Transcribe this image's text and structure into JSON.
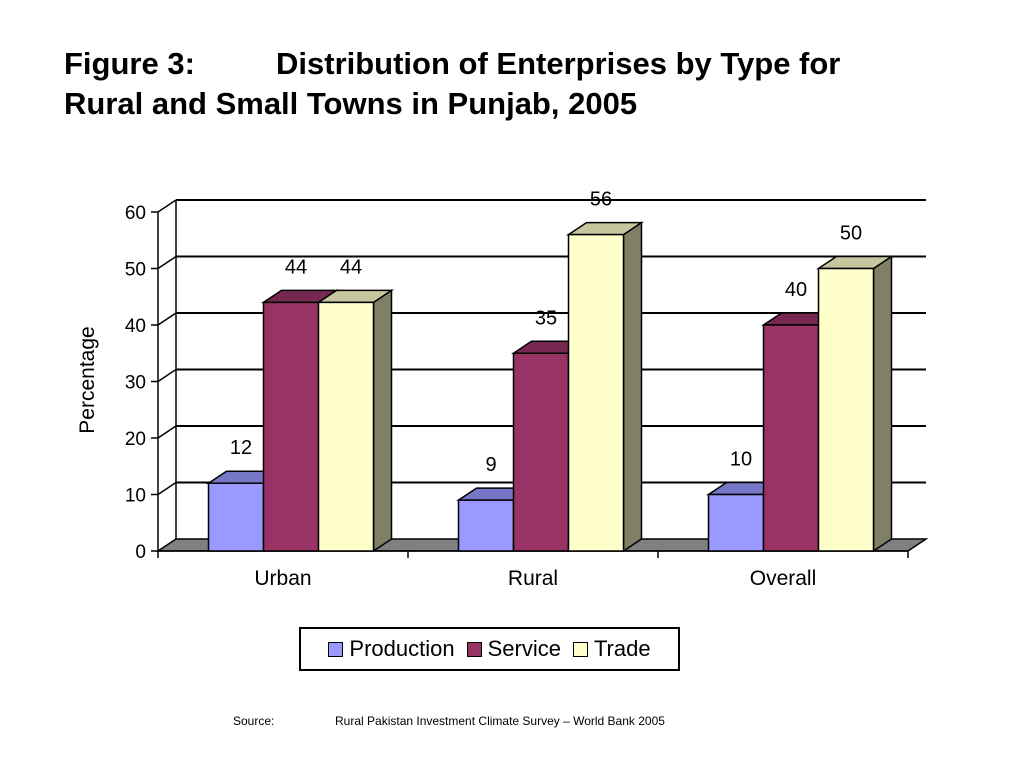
{
  "title": {
    "figure": "Figure 3:",
    "line1": "Distribution of Enterprises by Type for",
    "line2": "Rural and Small Towns in Punjab, 2005"
  },
  "source": {
    "label": "Source:",
    "text": "Rural Pakistan Investment Climate Survey – World Bank 2005"
  },
  "chart_data": {
    "type": "bar",
    "categories": [
      "Urban",
      "Rural",
      "Overall"
    ],
    "series": [
      {
        "name": "Production",
        "values": [
          12,
          9,
          10
        ],
        "color": "#9999FF"
      },
      {
        "name": "Service",
        "values": [
          44,
          35,
          40
        ],
        "color": "#993366"
      },
      {
        "name": "Trade",
        "values": [
          44,
          56,
          50
        ],
        "color": "#FFFFCC"
      }
    ],
    "ylabel": "Percentage",
    "xlabel": "",
    "ylim": [
      0,
      60
    ],
    "yticks": [
      0,
      10,
      20,
      30,
      40,
      50,
      60
    ],
    "grid": true,
    "three_d": true,
    "legend": "bottom"
  }
}
